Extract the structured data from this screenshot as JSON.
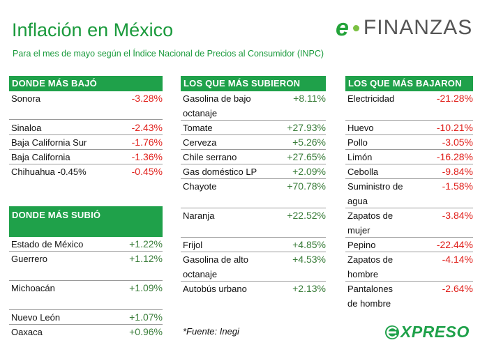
{
  "title": "Inflación en México",
  "subtitle": "Para el mes de mayo según el Índice Nacional de Precios al Consumidor (INPC)",
  "logo": {
    "prefix": "e",
    "name": "FINANZAS"
  },
  "footer_logo": "XPRESO",
  "source": "*Fuente: Inegi",
  "colors": {
    "green": "#1fa14a",
    "negative": "#e0201b",
    "positive": "#3a7d3a"
  },
  "bajo": {
    "header": "DONDE MÁS BAJÓ",
    "rows": [
      {
        "name": "Sonora",
        "value": "-3.28%"
      },
      {
        "name": "Sinaloa",
        "value": "-2.43%"
      },
      {
        "name": "Baja California Sur",
        "value": "-1.76%"
      },
      {
        "name": "Baja California",
        "value": "-1.36%"
      },
      {
        "name": "Chihuahua -0.45%",
        "value": "-0.45%"
      }
    ]
  },
  "subio": {
    "header": "DONDE MÁS SUBIÓ",
    "rows": [
      {
        "name": "Estado de México",
        "value": "+1.22%"
      },
      {
        "name": "Guerrero",
        "value": "+1.12%"
      },
      {
        "name": "Michoacán",
        "value": "+1.09%"
      },
      {
        "name": "Nuevo León",
        "value": "+1.07%"
      },
      {
        "name": "Oaxaca",
        "value": "+0.96%"
      }
    ]
  },
  "subieron": {
    "header": "LOS QUE MÁS SUBIERON",
    "rows": [
      {
        "name": "Gasolina de bajo",
        "name2": "octanaje",
        "value": "+8.11%"
      },
      {
        "name": "Tomate",
        "value": "+27.93%"
      },
      {
        "name": "Cerveza",
        "value": "+5.26%"
      },
      {
        "name": "Chile serrano",
        "value": "+27.65%"
      },
      {
        "name": "Gas doméstico LP",
        "value": "+2.09%"
      },
      {
        "name": "Chayote",
        "value": "+70.78%"
      },
      {
        "name": "Naranja",
        "value": "+22.52%"
      },
      {
        "name": "Frijol",
        "value": "+4.85%"
      },
      {
        "name": "Gasolina de alto",
        "name2": "octanaje",
        "value": "+4.53%"
      },
      {
        "name": "Autobús urbano",
        "value": "+2.13%"
      }
    ]
  },
  "bajaron": {
    "header": "LOS QUE MÁS BAJARON",
    "rows": [
      {
        "name": "Electricidad",
        "value": "-21.28%"
      },
      {
        "name": "Huevo",
        "value": "-10.21%"
      },
      {
        "name": "Pollo",
        "value": "-3.05%"
      },
      {
        "name": "Limón",
        "value": "-16.28%"
      },
      {
        "name": "Cebolla",
        "value": "-9.84%"
      },
      {
        "name": "Suministro de",
        "name2": "agua",
        "value": "-1.58%"
      },
      {
        "name": "Zapatos de",
        "name2": "mujer",
        "value": "-3.84%"
      },
      {
        "name": "Pepino",
        "value": "-22.44%"
      },
      {
        "name": "Zapatos de",
        "name2": "hombre",
        "value": "-4.14%"
      },
      {
        "name": "Pantalones",
        "name2": "de hombre",
        "value": "-2.64%"
      }
    ]
  }
}
